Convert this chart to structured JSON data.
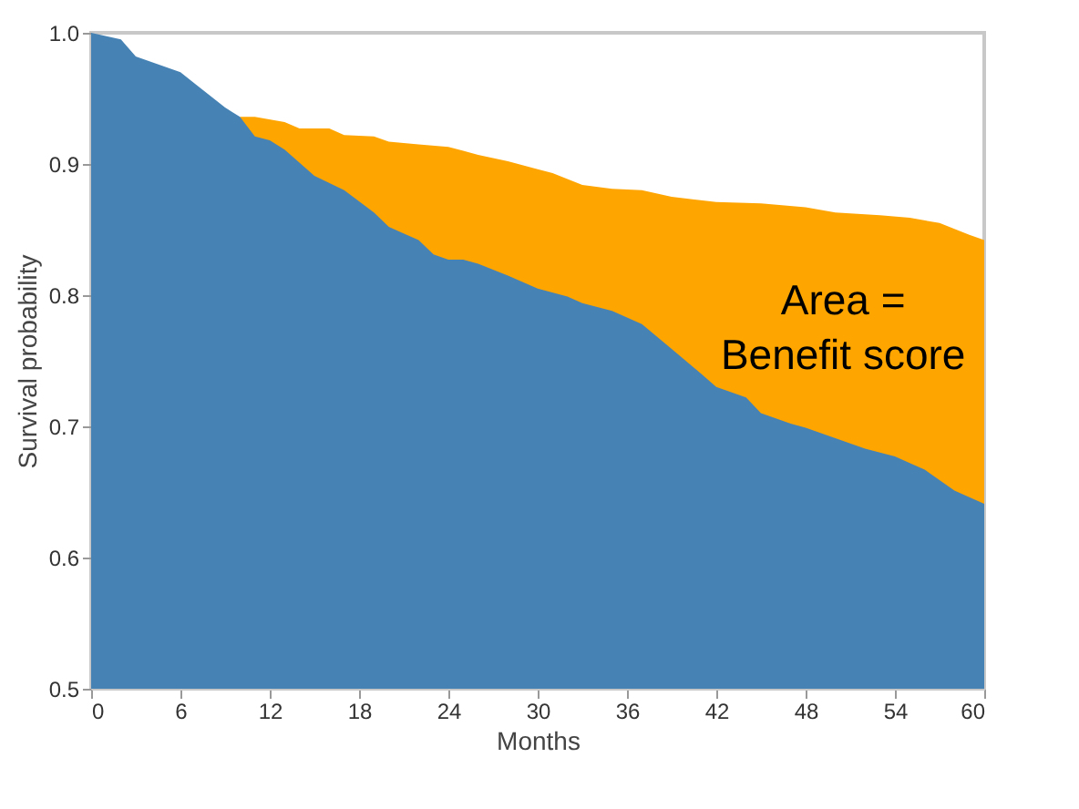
{
  "chart_data": {
    "type": "area",
    "xlabel": "Months",
    "ylabel": "Survival probability",
    "xlim": [
      0,
      60
    ],
    "xticks": [
      0,
      6,
      12,
      18,
      24,
      30,
      36,
      42,
      48,
      54,
      60
    ],
    "ylim": [
      0.5,
      1.0
    ],
    "yticks": [
      {
        "value": 0.5,
        "label": "0.5"
      },
      {
        "value": 0.6,
        "label": "0.6"
      },
      {
        "value": 0.7,
        "label": "0.7"
      },
      {
        "value": 0.8,
        "label": "0.8"
      },
      {
        "value": 0.9,
        "label": "0.9"
      },
      {
        "value": 1.0,
        "label": "1.0"
      }
    ],
    "grid": false,
    "series": [
      {
        "color": "#ffa500",
        "x": [
          10,
          11,
          13,
          14,
          16,
          17,
          19,
          20,
          22,
          24,
          25,
          26,
          28,
          30,
          31,
          33,
          35,
          37,
          39,
          42,
          45,
          48,
          50,
          53,
          55,
          57,
          59,
          60
        ],
        "values": [
          0.936,
          0.936,
          0.932,
          0.927,
          0.927,
          0.922,
          0.921,
          0.917,
          0.915,
          0.913,
          0.91,
          0.907,
          0.902,
          0.896,
          0.893,
          0.884,
          0.881,
          0.88,
          0.875,
          0.871,
          0.87,
          0.867,
          0.863,
          0.861,
          0.859,
          0.855,
          0.846,
          0.842
        ]
      },
      {
        "color": "#4682b4",
        "x": [
          0,
          2,
          3,
          6,
          7,
          9,
          10,
          11,
          12,
          13,
          15,
          17,
          19,
          20,
          22,
          23,
          24,
          25,
          26,
          28,
          30,
          32,
          33,
          35,
          37,
          39,
          41,
          42,
          44,
          45,
          47,
          48,
          50,
          52,
          54,
          56,
          58,
          60
        ],
        "values": [
          1.0,
          0.995,
          0.982,
          0.97,
          0.961,
          0.943,
          0.936,
          0.921,
          0.918,
          0.911,
          0.891,
          0.88,
          0.863,
          0.852,
          0.842,
          0.831,
          0.827,
          0.827,
          0.824,
          0.815,
          0.805,
          0.799,
          0.794,
          0.788,
          0.778,
          0.759,
          0.74,
          0.73,
          0.722,
          0.71,
          0.702,
          0.699,
          0.691,
          0.683,
          0.677,
          0.667,
          0.651,
          0.641
        ]
      }
    ],
    "annotations": [
      "Area =\nBenefit score"
    ]
  }
}
